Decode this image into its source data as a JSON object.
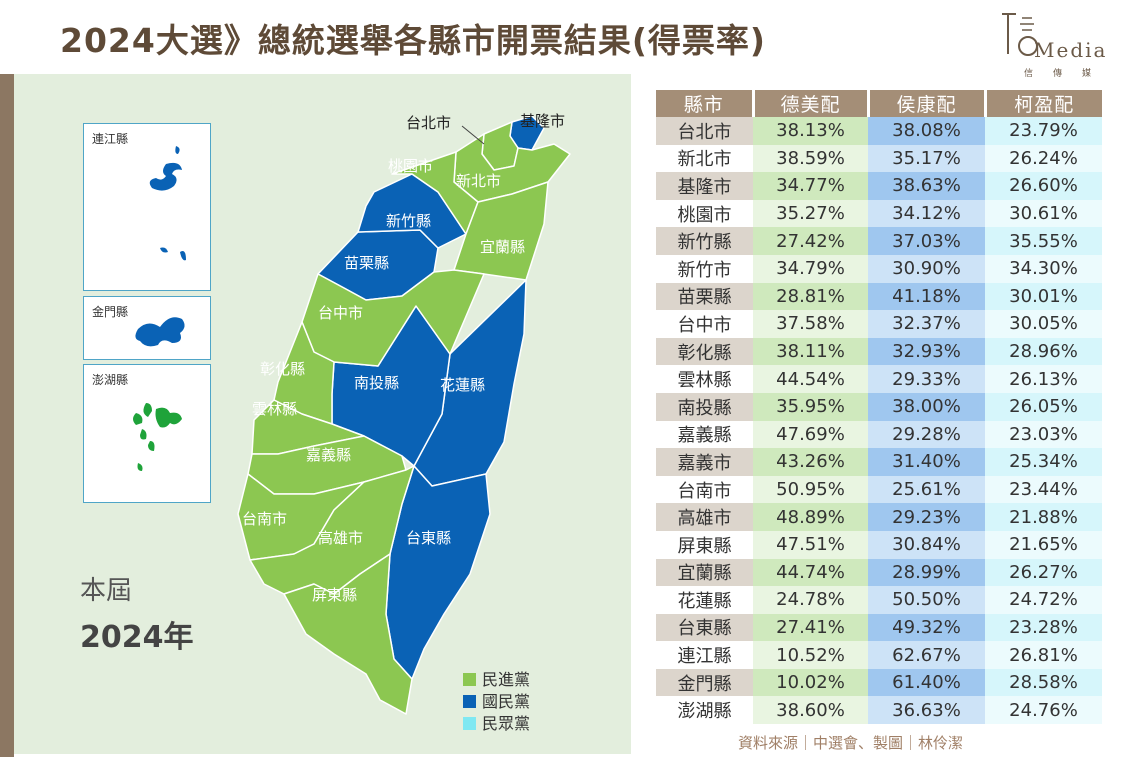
{
  "title": "2024大選》總統選舉各縣市開票結果(得票率)",
  "logo": {
    "word": "Media",
    "sub": "信傳媒"
  },
  "map": {
    "insets": [
      "連江縣",
      "金門縣",
      "澎湖縣"
    ],
    "labels": {
      "taipei": "台北市",
      "keelung": "基隆市",
      "taoyuan": "桃園市",
      "newtaipei": "新北市",
      "hsinchu": "新竹縣",
      "yilan": "宜蘭縣",
      "miaoli": "苗栗縣",
      "taichung": "台中市",
      "changhua": "彰化縣",
      "nantou": "南投縣",
      "hualien": "花蓮縣",
      "yunlin": "雲林縣",
      "chiayi": "嘉義縣",
      "tainan": "台南市",
      "kaohsiung": "高雄市",
      "taitung": "台東縣",
      "pingtung": "屏東縣"
    },
    "year_label": "本屆",
    "year_value": "2024年",
    "legend": [
      {
        "label": "民進黨",
        "color": "#8cc751"
      },
      {
        "label": "國民黨",
        "color": "#0a62b5"
      },
      {
        "label": "民眾黨",
        "color": "#7fe8f2"
      }
    ],
    "colors": {
      "dpp": "#8cc751",
      "kmt": "#0a62b5",
      "tpp": "#7fe8f2"
    }
  },
  "table": {
    "headers": [
      "縣市",
      "德美配",
      "侯康配",
      "柯盈配"
    ],
    "rows": [
      [
        "台北市",
        "38.13%",
        "38.08%",
        "23.79%"
      ],
      [
        "新北市",
        "38.59%",
        "35.17%",
        "26.24%"
      ],
      [
        "基隆市",
        "34.77%",
        "38.63%",
        "26.60%"
      ],
      [
        "桃園市",
        "35.27%",
        "34.12%",
        "30.61%"
      ],
      [
        "新竹縣",
        "27.42%",
        "37.03%",
        "35.55%"
      ],
      [
        "新竹市",
        "34.79%",
        "30.90%",
        "34.30%"
      ],
      [
        "苗栗縣",
        "28.81%",
        "41.18%",
        "30.01%"
      ],
      [
        "台中市",
        "37.58%",
        "32.37%",
        "30.05%"
      ],
      [
        "彰化縣",
        "38.11%",
        "32.93%",
        "28.96%"
      ],
      [
        "雲林縣",
        "44.54%",
        "29.33%",
        "26.13%"
      ],
      [
        "南投縣",
        "35.95%",
        "38.00%",
        "26.05%"
      ],
      [
        "嘉義縣",
        "47.69%",
        "29.28%",
        "23.03%"
      ],
      [
        "嘉義市",
        "43.26%",
        "31.40%",
        "25.34%"
      ],
      [
        "台南市",
        "50.95%",
        "25.61%",
        "23.44%"
      ],
      [
        "高雄市",
        "48.89%",
        "29.23%",
        "21.88%"
      ],
      [
        "屏東縣",
        "47.51%",
        "30.84%",
        "21.65%"
      ],
      [
        "宜蘭縣",
        "44.74%",
        "28.99%",
        "26.27%"
      ],
      [
        "花蓮縣",
        "24.78%",
        "50.50%",
        "24.72%"
      ],
      [
        "台東縣",
        "27.41%",
        "49.32%",
        "23.28%"
      ],
      [
        "連江縣",
        "10.52%",
        "62.67%",
        "26.81%"
      ],
      [
        "金門縣",
        "10.02%",
        "61.40%",
        "28.58%"
      ],
      [
        "澎湖縣",
        "38.60%",
        "36.63%",
        "24.76%"
      ]
    ]
  },
  "source": "資料來源｜中選會、製圖｜林伶潔"
}
